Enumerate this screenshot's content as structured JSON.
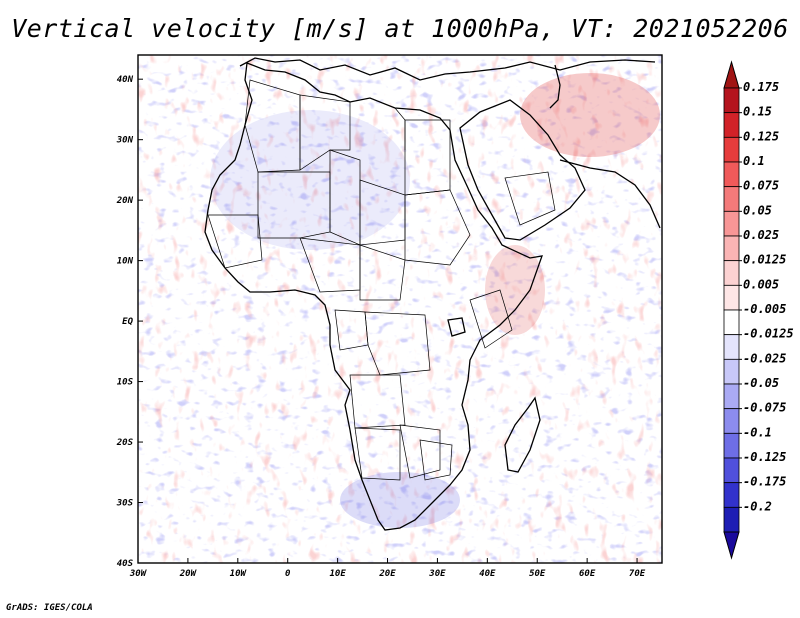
{
  "map": {
    "title": "Vertical velocity [m/s] at 1000hPa, VT: 2021052206",
    "footer": "GrADS: IGES/COLA",
    "lat_labels": [
      {
        "text": "40N",
        "value": 40
      },
      {
        "text": "30N",
        "value": 30
      },
      {
        "text": "20N",
        "value": 20
      },
      {
        "text": "10N",
        "value": 10
      },
      {
        "text": "EQ",
        "value": 0
      },
      {
        "text": "10S",
        "value": -10
      },
      {
        "text": "20S",
        "value": -20
      },
      {
        "text": "30S",
        "value": -30
      },
      {
        "text": "40S",
        "value": -40
      }
    ],
    "lon_labels": [
      {
        "text": "30W",
        "value": -30
      },
      {
        "text": "20W",
        "value": -20
      },
      {
        "text": "10W",
        "value": -10
      },
      {
        "text": "0",
        "value": 0
      },
      {
        "text": "10E",
        "value": 10
      },
      {
        "text": "20E",
        "value": 20
      },
      {
        "text": "30E",
        "value": 30
      },
      {
        "text": "40E",
        "value": 40
      },
      {
        "text": "50E",
        "value": 50
      },
      {
        "text": "60E",
        "value": 60
      },
      {
        "text": "70E",
        "value": 70
      }
    ],
    "extent": {
      "lon_min": -30,
      "lon_max": 75,
      "lat_min": -40,
      "lat_max": 44
    }
  },
  "colorbar": {
    "levels": [
      {
        "label": "0.175",
        "color": "#b4141e"
      },
      {
        "label": "0.15",
        "color": "#d22228"
      },
      {
        "label": "0.125",
        "color": "#e63c3c"
      },
      {
        "label": "0.1",
        "color": "#f05a5a"
      },
      {
        "label": "0.075",
        "color": "#f47a7a"
      },
      {
        "label": "0.05",
        "color": "#f89696"
      },
      {
        "label": "0.025",
        "color": "#fab4b4"
      },
      {
        "label": "0.0125",
        "color": "#fcd2d2"
      },
      {
        "label": "0.005",
        "color": "#fee6e6"
      },
      {
        "label": "-0.005",
        "color": "#ffffff"
      },
      {
        "label": "-0.0125",
        "color": "#e4e4fc"
      },
      {
        "label": "-0.025",
        "color": "#c8c8f8"
      },
      {
        "label": "-0.05",
        "color": "#aaaaf4"
      },
      {
        "label": "-0.075",
        "color": "#8c8cee"
      },
      {
        "label": "-0.1",
        "color": "#6e6ee6"
      },
      {
        "label": "-0.125",
        "color": "#5050dc"
      },
      {
        "label": "-0.175",
        "color": "#3232cc"
      },
      {
        "label": "-0.2",
        "color": "#1e1eb4"
      }
    ],
    "top_arrow_color": "#a01414",
    "bottom_arrow_color": "#1a0a9c"
  }
}
